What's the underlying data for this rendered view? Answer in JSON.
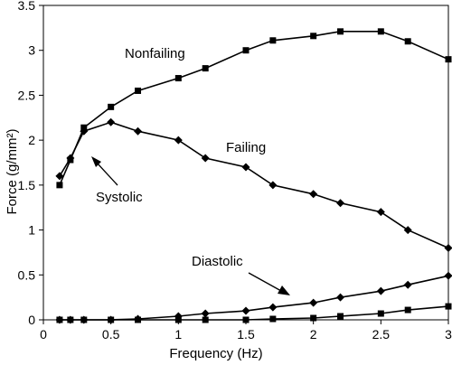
{
  "chart_data": {
    "type": "line",
    "title": "",
    "xlabel": "Frequency (Hz)",
    "ylabel": "Force (g/mm²)",
    "xlim": [
      0,
      3
    ],
    "ylim": [
      0,
      3.5
    ],
    "x_ticks": [
      0,
      0.5,
      1,
      1.5,
      2,
      2.5,
      3
    ],
    "x_tick_labels": [
      "0",
      "0.5",
      "1",
      "1.5",
      "2",
      "2.5",
      "3"
    ],
    "y_ticks": [
      0,
      0.5,
      1,
      1.5,
      2,
      2.5,
      3,
      3.5
    ],
    "y_tick_labels": [
      "0",
      "0.5",
      "1",
      "1.5",
      "2",
      "2.5",
      "3",
      "3.5"
    ],
    "grid": false,
    "series": [
      {
        "name": "Nonfailing",
        "group": "systolic",
        "marker": "square",
        "x": [
          0.12,
          0.2,
          0.3,
          0.5,
          0.7,
          1.0,
          1.2,
          1.5,
          1.7,
          2.0,
          2.2,
          2.5,
          2.7,
          3.0
        ],
        "y": [
          1.5,
          1.78,
          2.14,
          2.37,
          2.55,
          2.69,
          2.8,
          3.0,
          3.11,
          3.16,
          3.21,
          3.21,
          3.1,
          2.9
        ]
      },
      {
        "name": "Failing",
        "group": "systolic",
        "marker": "diamond",
        "x": [
          0.12,
          0.2,
          0.3,
          0.5,
          0.7,
          1.0,
          1.2,
          1.5,
          1.7,
          2.0,
          2.2,
          2.5,
          2.7,
          3.0
        ],
        "y": [
          1.6,
          1.8,
          2.1,
          2.2,
          2.1,
          2.0,
          1.8,
          1.7,
          1.5,
          1.4,
          1.3,
          1.2,
          1.0,
          0.8
        ]
      },
      {
        "name": "Failing",
        "group": "diastolic",
        "marker": "diamond",
        "x": [
          0.12,
          0.2,
          0.3,
          0.5,
          0.7,
          1.0,
          1.2,
          1.5,
          1.7,
          2.0,
          2.2,
          2.5,
          2.7,
          3.0
        ],
        "y": [
          0.0,
          0.0,
          0.0,
          0.0,
          0.01,
          0.04,
          0.07,
          0.1,
          0.14,
          0.19,
          0.25,
          0.32,
          0.39,
          0.49
        ]
      },
      {
        "name": "Nonfailing",
        "group": "diastolic",
        "marker": "square",
        "x": [
          0.12,
          0.2,
          0.3,
          0.5,
          0.7,
          1.0,
          1.2,
          1.5,
          1.7,
          2.0,
          2.2,
          2.5,
          2.7,
          3.0
        ],
        "y": [
          0.0,
          0.0,
          0.0,
          0.0,
          0.0,
          0.0,
          0.0,
          0.0,
          0.01,
          0.02,
          0.04,
          0.07,
          0.11,
          0.15
        ]
      }
    ],
    "annotations": {
      "nonfailing": "Nonfailing",
      "failing": "Failing",
      "systolic": "Systolic",
      "diastolic": "Diastolic"
    },
    "colors": {
      "line": "#000000",
      "marker": "#000000",
      "background": "#ffffff"
    }
  }
}
